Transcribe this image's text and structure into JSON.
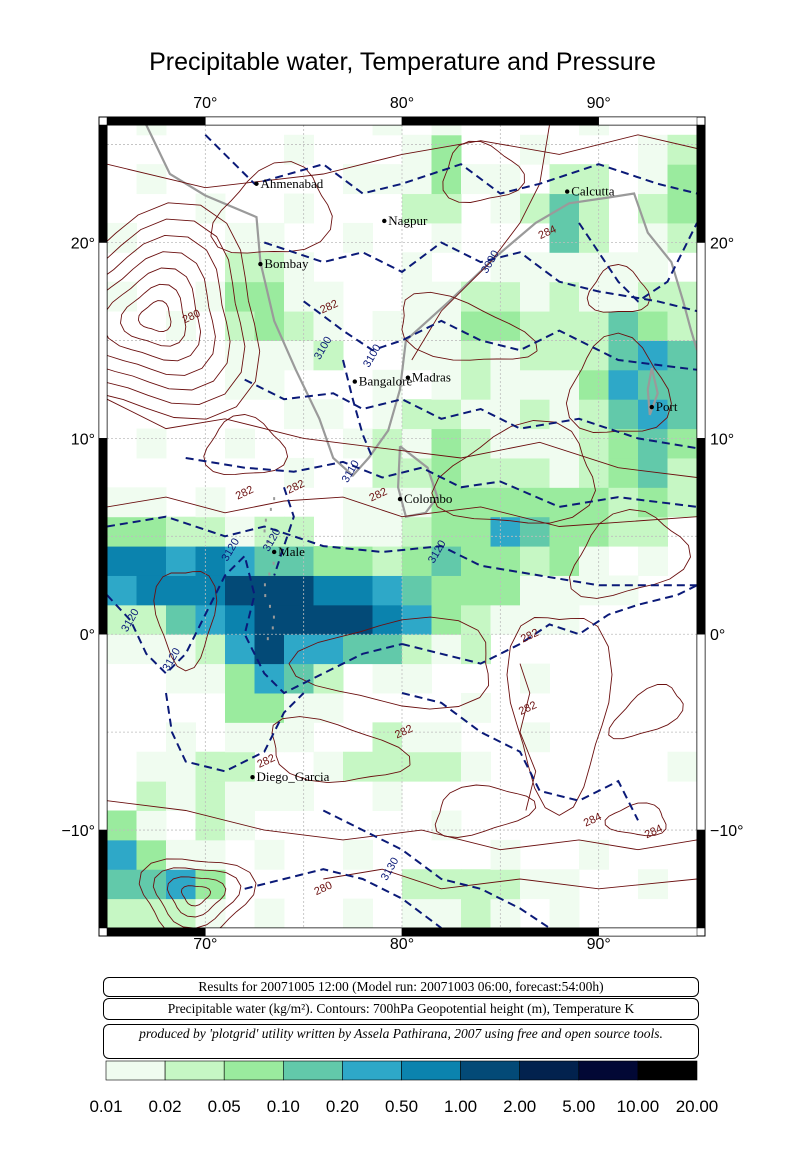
{
  "title": "Precipitable water, Temperature and Pressure",
  "map": {
    "lon_range": [
      65,
      95
    ],
    "lat_range": [
      -15,
      26
    ],
    "lon_ticks": [
      70,
      80,
      90
    ],
    "lat_ticks": [
      20,
      10,
      0,
      -10
    ],
    "lon_tick_labels": [
      "70°",
      "80°",
      "90°"
    ],
    "lat_tick_labels": [
      "20°",
      "10°",
      "0°",
      "−10°"
    ],
    "cities": [
      {
        "name": "Ahmenabad",
        "lon": 72.6,
        "lat": 23.0
      },
      {
        "name": "Bombay",
        "lon": 72.8,
        "lat": 18.9
      },
      {
        "name": "Nagpur",
        "lon": 79.1,
        "lat": 21.1
      },
      {
        "name": "Calcutta",
        "lon": 88.4,
        "lat": 22.6
      },
      {
        "name": "Bangalore",
        "lon": 77.6,
        "lat": 12.9
      },
      {
        "name": "Madras",
        "lon": 80.3,
        "lat": 13.1
      },
      {
        "name": "Port",
        "lon": 92.7,
        "lat": 11.6
      },
      {
        "name": "Colombo",
        "lon": 79.9,
        "lat": 6.9
      },
      {
        "name": "Male",
        "lon": 73.5,
        "lat": 4.2
      },
      {
        "name": "Diego_Garcia",
        "lon": 72.4,
        "lat": -7.3
      }
    ],
    "contour_labels": [
      {
        "text": "280",
        "lon": 69.3,
        "lat": 16.2,
        "kind": "temp"
      },
      {
        "text": "282",
        "lon": 76.3,
        "lat": 16.7,
        "kind": "temp"
      },
      {
        "text": "3100",
        "lon": 76.0,
        "lat": 14.6,
        "kind": "height"
      },
      {
        "text": "3100",
        "lon": 78.5,
        "lat": 14.2,
        "kind": "height"
      },
      {
        "text": "3090",
        "lon": 84.5,
        "lat": 19.0,
        "kind": "height"
      },
      {
        "text": "284",
        "lon": 87.4,
        "lat": 20.5,
        "kind": "temp"
      },
      {
        "text": "282",
        "lon": 72.0,
        "lat": 7.2,
        "kind": "temp"
      },
      {
        "text": "282",
        "lon": 74.6,
        "lat": 7.5,
        "kind": "temp"
      },
      {
        "text": "3110",
        "lon": 77.4,
        "lat": 8.3,
        "kind": "height"
      },
      {
        "text": "282",
        "lon": 78.8,
        "lat": 7.1,
        "kind": "temp"
      },
      {
        "text": "3120",
        "lon": 73.4,
        "lat": 4.8,
        "kind": "height"
      },
      {
        "text": "3120",
        "lon": 71.3,
        "lat": 4.3,
        "kind": "height"
      },
      {
        "text": "3120",
        "lon": 66.2,
        "lat": 0.7,
        "kind": "height"
      },
      {
        "text": "3120",
        "lon": 68.3,
        "lat": -1.3,
        "kind": "height"
      },
      {
        "text": "3120",
        "lon": 81.8,
        "lat": 4.2,
        "kind": "height"
      },
      {
        "text": "282",
        "lon": 86.5,
        "lat": -0.1,
        "kind": "temp"
      },
      {
        "text": "282",
        "lon": 86.4,
        "lat": -3.8,
        "kind": "temp"
      },
      {
        "text": "282",
        "lon": 80.1,
        "lat": -5.0,
        "kind": "temp"
      },
      {
        "text": "282",
        "lon": 73.1,
        "lat": -6.5,
        "kind": "temp"
      },
      {
        "text": "284",
        "lon": 89.7,
        "lat": -9.5,
        "kind": "temp"
      },
      {
        "text": "284",
        "lon": 92.8,
        "lat": -10.1,
        "kind": "temp"
      },
      {
        "text": "3130",
        "lon": 79.4,
        "lat": -12.0,
        "kind": "height"
      },
      {
        "text": "280",
        "lon": 76.0,
        "lat": -13.0,
        "kind": "temp"
      }
    ]
  },
  "info": {
    "line1": "Results for 20071005 12:00 (Model run: 20071003 06:00, forecast:54:00h)",
    "line2": "Precipitable water (kg/m²).  Contours: 700hPa Geopotential height (m), Temperature K",
    "line3": "produced by 'plotgrid' utility written by Assela Pathirana, 2007 using free and open source tools."
  },
  "colorbar": {
    "labels": [
      "0.01",
      "0.02",
      "0.05",
      "0.10",
      "0.20",
      "0.50",
      "1.00",
      "2.00",
      "5.00",
      "10.00",
      "20.00"
    ],
    "colors": [
      "#f0fcf0",
      "#c6f7c4",
      "#9aeb9e",
      "#62c9aa",
      "#2ea8c8",
      "#0b83ae",
      "#034a77",
      "#02224e",
      "#020835",
      "#000000"
    ]
  }
}
